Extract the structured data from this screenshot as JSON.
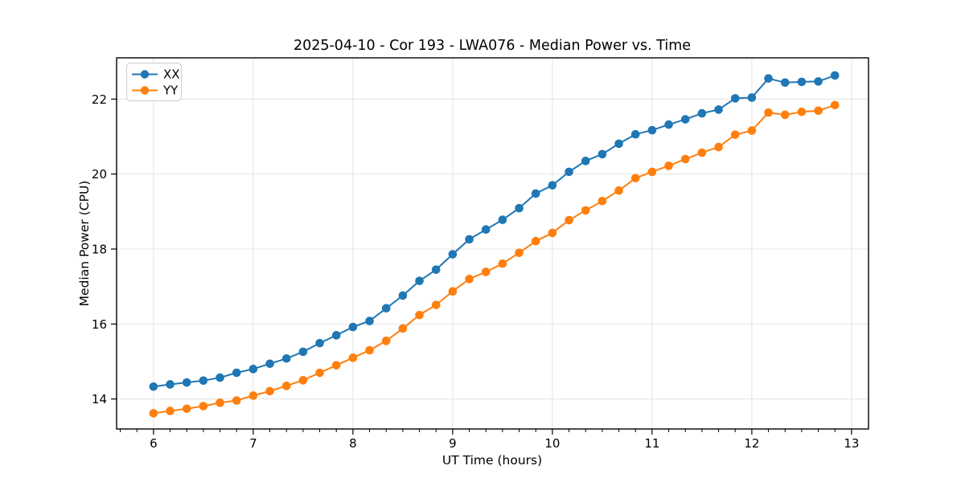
{
  "chart_data": {
    "type": "line",
    "title": "2025-04-10 - Cor 193 - LWA076 - Median Power vs. Time",
    "xlabel": "UT Time (hours)",
    "ylabel": "Median Power (CPU)",
    "xlim": [
      5.63,
      13.17
    ],
    "ylim": [
      13.2,
      23.1
    ],
    "x_major_ticks": [
      6,
      7,
      8,
      9,
      10,
      11,
      12,
      13
    ],
    "x_minor_divisions": 6,
    "y_major_ticks": [
      14,
      16,
      18,
      20,
      22
    ],
    "grid": true,
    "grid_color": "#e3e3e3",
    "axis_color": "#000000",
    "legend_position": "upper left",
    "x": [
      6.0,
      6.1667,
      6.3333,
      6.5,
      6.6667,
      6.8333,
      7.0,
      7.1667,
      7.3333,
      7.5,
      7.6667,
      7.8333,
      8.0,
      8.1667,
      8.3333,
      8.5,
      8.6667,
      8.8333,
      9.0,
      9.1667,
      9.3333,
      9.5,
      9.6667,
      9.8333,
      10.0,
      10.1667,
      10.3333,
      10.5,
      10.6667,
      10.8333,
      11.0,
      11.1667,
      11.3333,
      11.5,
      11.6667,
      11.8333,
      12.0,
      12.1667,
      12.3333,
      12.5,
      12.6667,
      12.8333
    ],
    "series": [
      {
        "name": "XX",
        "color": "#1f77b4",
        "values": [
          14.33,
          14.39,
          14.44,
          14.49,
          14.57,
          14.7,
          14.8,
          14.94,
          15.08,
          15.26,
          15.49,
          15.7,
          15.92,
          16.08,
          16.42,
          16.76,
          17.15,
          17.45,
          17.86,
          18.26,
          18.52,
          18.78,
          19.09,
          19.48,
          19.7,
          20.06,
          20.35,
          20.53,
          20.81,
          21.06,
          21.17,
          21.32,
          21.46,
          21.62,
          21.72,
          22.02,
          22.04,
          22.55,
          22.44,
          22.46,
          22.47,
          22.63
        ]
      },
      {
        "name": "YY",
        "color": "#ff7f0e",
        "values": [
          13.62,
          13.68,
          13.74,
          13.81,
          13.9,
          13.96,
          14.09,
          14.21,
          14.35,
          14.5,
          14.7,
          14.9,
          15.1,
          15.3,
          15.55,
          15.88,
          16.24,
          16.51,
          16.87,
          17.2,
          17.39,
          17.61,
          17.9,
          18.21,
          18.43,
          18.77,
          19.03,
          19.28,
          19.56,
          19.89,
          20.06,
          20.22,
          20.4,
          20.57,
          20.72,
          21.05,
          21.16,
          21.64,
          21.58,
          21.66,
          21.69,
          21.84
        ]
      }
    ]
  }
}
